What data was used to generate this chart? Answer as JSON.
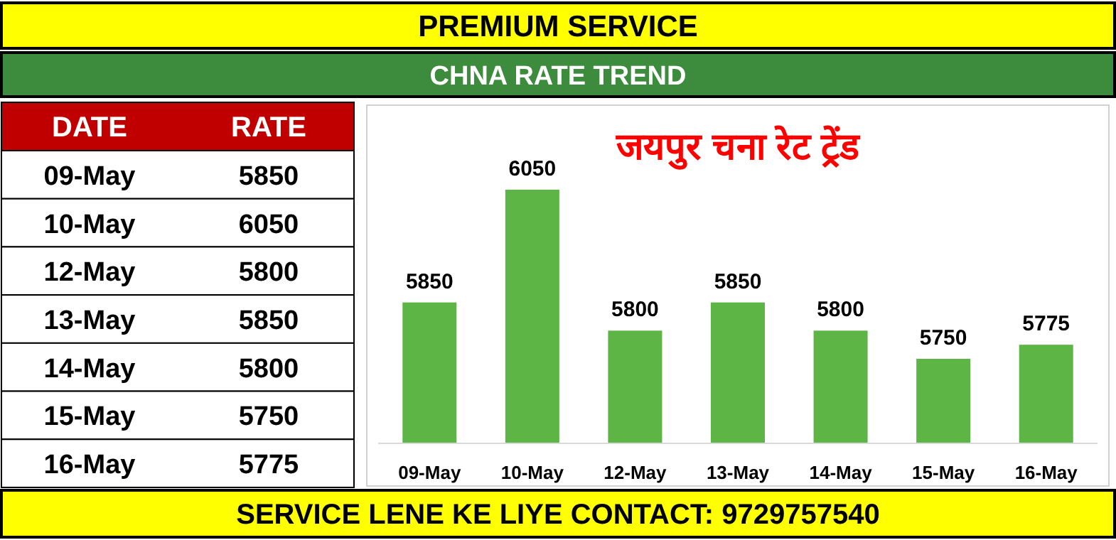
{
  "chart_data": {
    "type": "bar",
    "title": "जयपुर चना रेट ट्रेंड",
    "annotations": [
      "PREMIUM SERVICE",
      "CHNA RATE TREND",
      "SERVICE LENE KE LIYE CONTACT: 9729757540",
      "DATE",
      "RATE",
      "5850",
      "6050",
      "5800",
      "5850",
      "5800",
      "5750",
      "5775"
    ],
    "categories": [
      "09-May",
      "10-May",
      "12-May",
      "13-May",
      "14-May",
      "15-May",
      "16-May"
    ],
    "values": [
      5850,
      6050,
      5800,
      5850,
      5800,
      5750,
      5775
    ],
    "color": "#5cb545",
    "ylim": [
      5600,
      6200
    ],
    "data_labels": true
  }
}
